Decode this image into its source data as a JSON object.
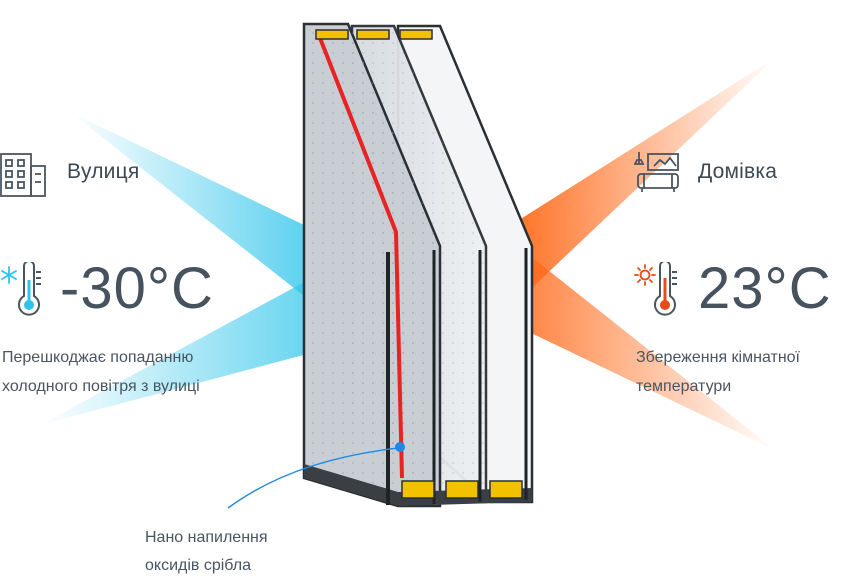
{
  "outside": {
    "title": "Вулиця",
    "temperature": "-30°C",
    "description_line1": "Перешкоджає попаданню",
    "description_line2": "холодного повітря з вулиці",
    "icons": [
      "building-icon",
      "snowflake-icon",
      "thermometer-icon"
    ],
    "color": "#2ec4ea"
  },
  "inside": {
    "title": "Домівка",
    "temperature": "23°C",
    "description_line1": "Збереження кімнатної",
    "description_line2": "температури",
    "icons": [
      "living-room-icon",
      "sun-icon",
      "thermometer-icon"
    ],
    "color": "#ff6a1a"
  },
  "coating": {
    "line1": "Нано напилення",
    "line2": "оксидів срібла",
    "color": "#e82323"
  },
  "colors": {
    "frame": "#2b2f33",
    "spacer_fill": "#f2c200",
    "pointer": "#1e88e5",
    "text": "#4a5560"
  }
}
